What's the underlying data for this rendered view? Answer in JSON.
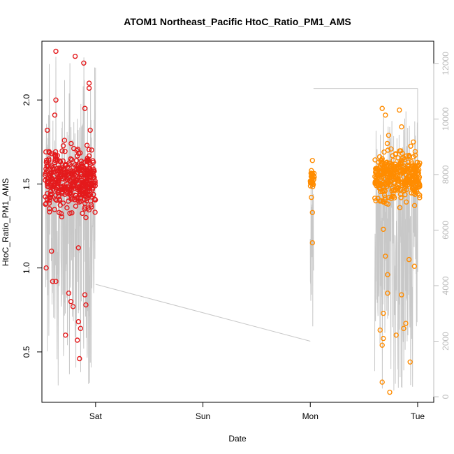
{
  "chart_data": {
    "type": "scatter",
    "title": "ATOM1 Northeast_Pacific HtoC_Ratio_PM1_AMS",
    "xlabel": "Date",
    "ylabel": "HtoC_Ratio_PM1_AMS",
    "x_ticks": [
      {
        "label": "Sat",
        "day": 1.0
      },
      {
        "label": "Sun",
        "day": 2.0
      },
      {
        "label": "Mon",
        "day": 3.0
      },
      {
        "label": "Tue",
        "day": 4.0
      }
    ],
    "xlim_days": [
      0.5,
      4.15
    ],
    "y_ticks": [
      0.5,
      1.0,
      1.5,
      2.0
    ],
    "ylim": [
      0.2,
      2.35
    ],
    "y2_ticks": [
      0,
      2000,
      4000,
      6000,
      8000,
      10000,
      12000
    ],
    "y2lim": [
      -200,
      12800
    ],
    "colors": {
      "series_red": "#e41a1c",
      "series_orange": "#ff8c00",
      "secondary_line": "#c8c8c8",
      "axis": "#000000",
      "secondary_axis": "#bdbdbd"
    },
    "series": [
      {
        "color": "#e41a1c",
        "marker": "open-circle",
        "x_range_days": [
          0.53,
          1.0
        ],
        "center": 1.52,
        "sample_points": [
          {
            "x": 0.63,
            "y": 2.29
          },
          {
            "x": 0.81,
            "y": 2.26
          },
          {
            "x": 0.89,
            "y": 2.22
          },
          {
            "x": 0.94,
            "y": 2.1
          },
          {
            "x": 0.94,
            "y": 2.07
          },
          {
            "x": 0.63,
            "y": 2.0
          },
          {
            "x": 0.9,
            "y": 1.95
          },
          {
            "x": 0.62,
            "y": 1.91
          },
          {
            "x": 0.55,
            "y": 1.82
          },
          {
            "x": 0.95,
            "y": 1.82
          },
          {
            "x": 0.71,
            "y": 1.76
          },
          {
            "x": 0.92,
            "y": 1.73
          },
          {
            "x": 0.58,
            "y": 1.54
          },
          {
            "x": 0.97,
            "y": 1.55
          },
          {
            "x": 0.66,
            "y": 1.33
          },
          {
            "x": 0.91,
            "y": 1.3
          },
          {
            "x": 0.59,
            "y": 1.1
          },
          {
            "x": 0.84,
            "y": 1.12
          },
          {
            "x": 0.54,
            "y": 1.0
          },
          {
            "x": 0.6,
            "y": 0.92
          },
          {
            "x": 0.63,
            "y": 0.92
          },
          {
            "x": 0.75,
            "y": 0.85
          },
          {
            "x": 0.77,
            "y": 0.8
          },
          {
            "x": 0.79,
            "y": 0.77
          },
          {
            "x": 0.9,
            "y": 0.84
          },
          {
            "x": 0.91,
            "y": 0.78
          },
          {
            "x": 0.84,
            "y": 0.68
          },
          {
            "x": 0.86,
            "y": 0.64
          },
          {
            "x": 0.72,
            "y": 0.6
          },
          {
            "x": 0.83,
            "y": 0.57
          },
          {
            "x": 0.85,
            "y": 0.46
          }
        ]
      },
      {
        "color": "#ff8c00",
        "marker": "open-circle",
        "x_range_days": [
          2.98,
          4.02
        ],
        "center": 1.55,
        "sample_points": [
          {
            "x": 3.02,
            "y": 1.64
          },
          {
            "x": 3.01,
            "y": 1.58
          },
          {
            "x": 3.02,
            "y": 1.5
          },
          {
            "x": 3.01,
            "y": 1.42
          },
          {
            "x": 3.02,
            "y": 1.33
          },
          {
            "x": 3.02,
            "y": 1.15
          },
          {
            "x": 3.67,
            "y": 1.95
          },
          {
            "x": 3.7,
            "y": 1.91
          },
          {
            "x": 3.83,
            "y": 1.94
          },
          {
            "x": 3.85,
            "y": 1.84
          },
          {
            "x": 3.96,
            "y": 1.75
          },
          {
            "x": 3.73,
            "y": 1.79
          },
          {
            "x": 3.66,
            "y": 1.4
          },
          {
            "x": 3.68,
            "y": 1.23
          },
          {
            "x": 3.7,
            "y": 1.07
          },
          {
            "x": 3.72,
            "y": 0.96
          },
          {
            "x": 3.72,
            "y": 0.85
          },
          {
            "x": 3.68,
            "y": 0.73
          },
          {
            "x": 3.65,
            "y": 0.63
          },
          {
            "x": 3.67,
            "y": 0.54
          },
          {
            "x": 3.68,
            "y": 0.58
          },
          {
            "x": 3.8,
            "y": 0.6
          },
          {
            "x": 3.87,
            "y": 0.64
          },
          {
            "x": 3.89,
            "y": 0.67
          },
          {
            "x": 3.97,
            "y": 1.01
          },
          {
            "x": 3.92,
            "y": 1.05
          },
          {
            "x": 3.67,
            "y": 0.32
          },
          {
            "x": 3.74,
            "y": 0.26
          },
          {
            "x": 3.93,
            "y": 0.44
          },
          {
            "x": 3.85,
            "y": 0.84
          }
        ]
      }
    ],
    "secondary_line": {
      "segments": [
        {
          "x": [
            0.53,
            1.0
          ],
          "y_range": [
            300,
            12300
          ]
        },
        {
          "x": [
            3.0,
            3.03
          ],
          "y_range": [
            2500,
            8200
          ]
        },
        {
          "x": [
            3.6,
            4.0
          ],
          "y_range": [
            200,
            10500
          ]
        }
      ],
      "connectors": [
        {
          "x": [
            1.0,
            3.0
          ],
          "y": [
            4050,
            2000
          ]
        },
        {
          "x": [
            3.03,
            4.0
          ],
          "y": [
            11100,
            11100
          ]
        }
      ]
    }
  }
}
